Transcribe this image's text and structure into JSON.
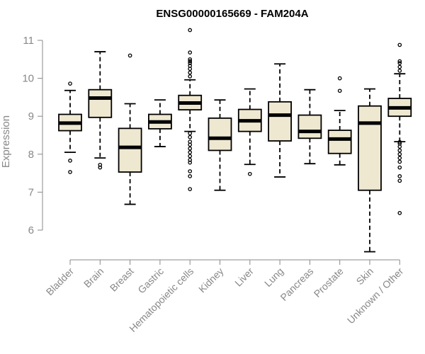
{
  "chart_data": {
    "type": "boxplot",
    "title": "ENSG00000165669 - FAM204A",
    "xlabel": "",
    "ylabel": "Expression",
    "ylim": [
      5.5,
      11.3
    ],
    "yticks": [
      6,
      7,
      8,
      9,
      10,
      11
    ],
    "box_fill": "#efe8d1",
    "box_stroke": "#000000",
    "axis_color": "#888888",
    "categories": [
      "Bladder",
      "Brain",
      "Breast",
      "Gastric",
      "Hematopoietic cells",
      "Kidney",
      "Liver",
      "Lung",
      "Pancreas",
      "Prostate",
      "Skin",
      "Unknown / Other"
    ],
    "boxes": [
      {
        "category": "Bladder",
        "whisker_low": 8.05,
        "q1": 8.62,
        "median": 8.82,
        "q3": 9.05,
        "whisker_high": 9.68,
        "outliers": [
          9.86,
          7.83,
          7.53
        ]
      },
      {
        "category": "Brain",
        "whisker_low": 7.9,
        "q1": 8.97,
        "median": 9.48,
        "q3": 9.7,
        "whisker_high": 10.7,
        "outliers": [
          7.72,
          7.65
        ]
      },
      {
        "category": "Breast",
        "whisker_low": 6.68,
        "q1": 7.53,
        "median": 8.18,
        "q3": 8.68,
        "whisker_high": 9.33,
        "outliers": [
          10.6
        ]
      },
      {
        "category": "Gastric",
        "whisker_low": 8.2,
        "q1": 8.67,
        "median": 8.85,
        "q3": 9.05,
        "whisker_high": 9.43,
        "outliers": []
      },
      {
        "category": "Hematopoietic cells",
        "whisker_low": 8.6,
        "q1": 9.17,
        "median": 9.35,
        "q3": 9.55,
        "whisker_high": 9.96,
        "outliers": [
          11.27,
          10.68,
          10.5,
          10.45,
          10.4,
          10.33,
          10.25,
          10.15,
          10.05,
          8.55,
          8.45,
          8.33,
          8.25,
          8.15,
          8.05,
          7.95,
          7.85,
          7.78,
          7.55,
          7.42,
          7.08
        ]
      },
      {
        "category": "Kidney",
        "whisker_low": 7.05,
        "q1": 8.1,
        "median": 8.42,
        "q3": 8.95,
        "whisker_high": 9.43,
        "outliers": []
      },
      {
        "category": "Liver",
        "whisker_low": 7.73,
        "q1": 8.6,
        "median": 8.88,
        "q3": 9.18,
        "whisker_high": 9.72,
        "outliers": [
          7.48
        ]
      },
      {
        "category": "Lung",
        "whisker_low": 7.4,
        "q1": 8.35,
        "median": 9.03,
        "q3": 9.38,
        "whisker_high": 10.38,
        "outliers": []
      },
      {
        "category": "Pancreas",
        "whisker_low": 7.75,
        "q1": 8.42,
        "median": 8.6,
        "q3": 9.03,
        "whisker_high": 9.7,
        "outliers": []
      },
      {
        "category": "Prostate",
        "whisker_low": 7.72,
        "q1": 8.02,
        "median": 8.4,
        "q3": 8.63,
        "whisker_high": 9.15,
        "outliers": [
          10.0,
          9.67
        ]
      },
      {
        "category": "Skin",
        "whisker_low": 5.43,
        "q1": 7.05,
        "median": 8.82,
        "q3": 9.27,
        "whisker_high": 9.72,
        "outliers": []
      },
      {
        "category": "Unknown / Other",
        "whisker_low": 8.33,
        "q1": 9.0,
        "median": 9.22,
        "q3": 9.47,
        "whisker_high": 10.12,
        "outliers": [
          10.88,
          10.45,
          10.4,
          10.3,
          10.2,
          8.32,
          8.28,
          8.2,
          8.1,
          8.0,
          7.9,
          7.8,
          7.65,
          7.42,
          7.3,
          6.45
        ]
      }
    ]
  }
}
